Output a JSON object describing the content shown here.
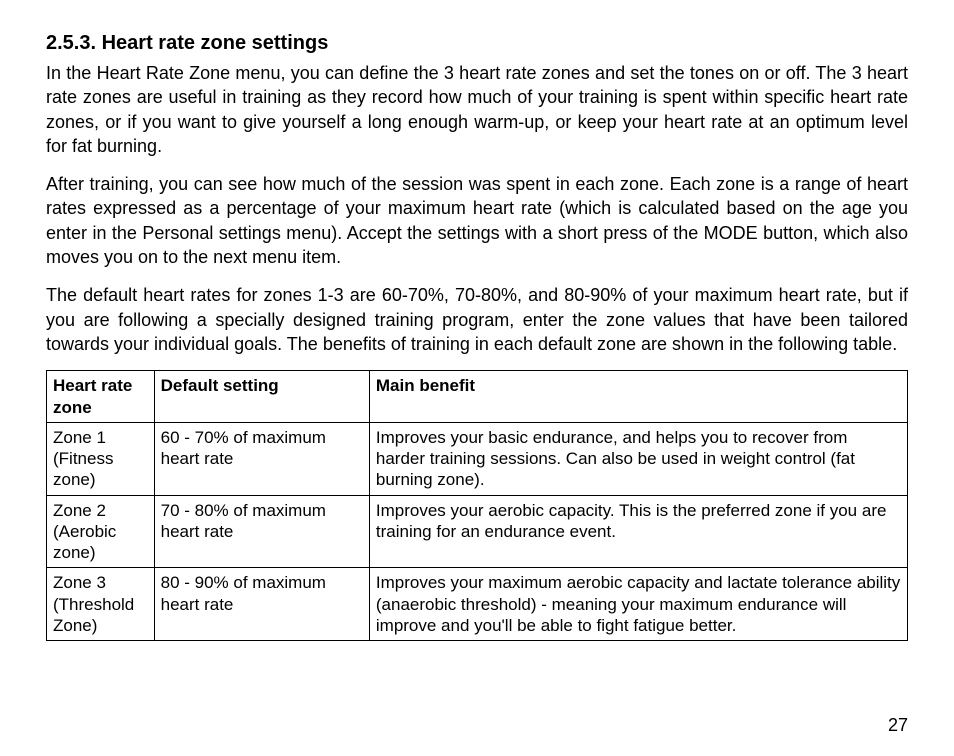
{
  "page_number": "27",
  "heading": "2.5.3. Heart rate zone settings",
  "paragraphs": [
    "In the Heart Rate Zone menu, you can define the 3 heart rate zones and set the tones on or off. The 3 heart rate zones are useful in training as they record how much of your training is spent within specific heart rate zones, or if you want to give yourself a long enough warm-up, or keep your heart rate at an optimum level for fat burning.",
    "After training, you can see how much of the session was spent in each zone. Each zone is a range of heart rates expressed as a percentage of your maximum heart rate (which is calculated based on the age you enter in the Personal settings menu). Accept the settings with a short press of the MODE button, which also moves you on to the next menu item.",
    "The default heart rates for zones 1-3 are 60-70%, 70-80%, and 80-90% of your maximum heart rate, but if you are following a specially designed training program, enter the zone values that have been tailored towards your individual goals. The benefits of training in each default zone are shown in the following table."
  ],
  "table": {
    "columns": [
      "Heart rate zone",
      "Default setting",
      "Main benefit"
    ],
    "column_widths_pct": [
      12.5,
      25,
      62.5
    ],
    "header_fontweight": "bold",
    "border_color": "#000000",
    "font_size_pt": 13,
    "rows": [
      [
        "Zone 1 (Fitness zone)",
        "60 - 70% of maximum heart rate",
        "Improves your basic endurance, and helps you to recover from harder training sessions. Can also be used in weight control (fat burning zone)."
      ],
      [
        "Zone 2 (Aerobic zone)",
        "70 - 80% of maximum heart rate",
        "Improves your aerobic capacity. This is the preferred zone if you are training for an endurance event."
      ],
      [
        "Zone 3 (Threshold Zone)",
        "80 - 90% of maximum heart rate",
        "Improves your maximum aerobic capacity and lactate tolerance ability (anaerobic threshold) - meaning your maximum endurance will improve and you'll be able to fight fatigue better."
      ]
    ]
  },
  "typography": {
    "heading_fontsize_pt": 15,
    "heading_fontweight": "bold",
    "body_fontsize_pt": 13.5,
    "body_line_height": 1.35,
    "text_align": "justify",
    "font_family": "Arial",
    "text_color": "#000000",
    "background_color": "#ffffff"
  }
}
